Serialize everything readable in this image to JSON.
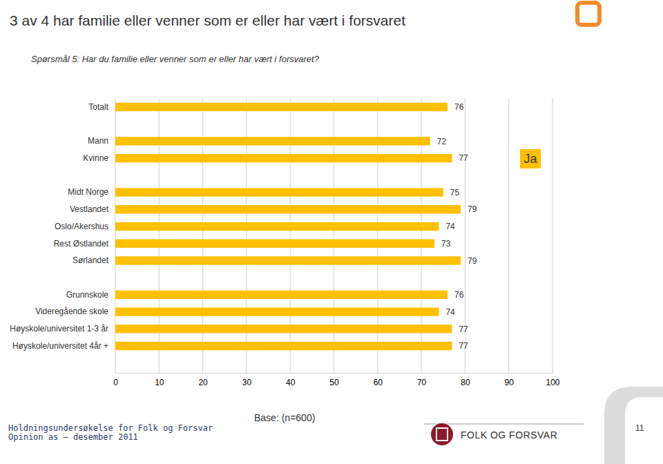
{
  "chart_data": {
    "type": "bar",
    "orientation": "horizontal",
    "title": "3 av 4 har familie eller venner som er eller har vært i forsvaret",
    "subtitle": "Spørsmål 5: Har du familie eller venner som er eller har vært i forsvaret?",
    "categories": [
      "Totalt",
      null,
      "Mann",
      "Kvinne",
      null,
      "Midt Norge",
      "Vestlandet",
      "Oslo/Akershus",
      "Rest Østlandet",
      "Sørlandet",
      null,
      "Grunnskole",
      "Videregående skole",
      "Høyskole/universitet 1-3 år",
      "Høyskole/universitet 4år +"
    ],
    "series": [
      {
        "name": "Ja",
        "color": "#ffc000",
        "values": [
          76,
          null,
          72,
          77,
          null,
          75,
          79,
          74,
          73,
          79,
          null,
          76,
          74,
          77,
          77
        ]
      }
    ],
    "xlim": [
      0,
      100
    ],
    "xticks": [
      0,
      10,
      20,
      30,
      40,
      50,
      60,
      70,
      80,
      90,
      100
    ],
    "grid": true,
    "legend": "right",
    "data_labels": true,
    "annotations": [
      "Base: (n=600)",
      "Holdningsundersøkelse for Folk og Forsvar",
      "Opinion as – desember 2011",
      "FOLK OG FORSVAR",
      "11"
    ]
  }
}
